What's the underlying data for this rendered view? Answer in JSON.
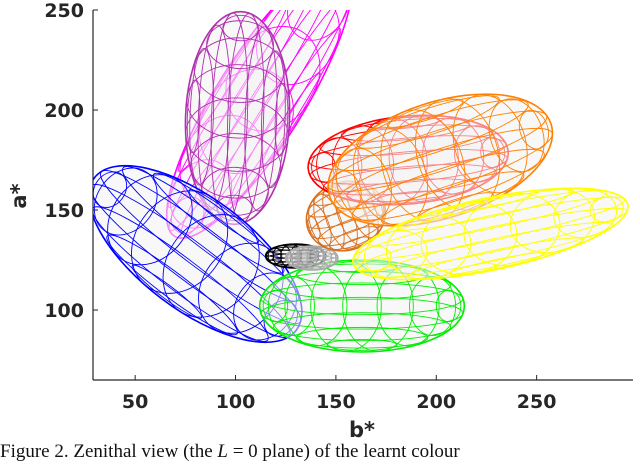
{
  "chart_data": {
    "type": "scatter",
    "subtype": "3d-ellipsoid-wireframe-top-view",
    "xlabel": "b*",
    "ylabel": "a*",
    "xlim": [
      29,
      298
    ],
    "ylim": [
      65,
      250
    ],
    "xticks": [
      50,
      100,
      150,
      200,
      250
    ],
    "yticks": [
      100,
      150,
      200,
      250
    ],
    "grid": false,
    "ellipsoids": [
      {
        "name": "magenta",
        "color": "#ff00ff",
        "center_b": 112,
        "center_a": 205,
        "semi_major": 80,
        "semi_minor": 22,
        "angle_deg": 58
      },
      {
        "name": "purple",
        "color": "#b030b0",
        "center_b": 101,
        "center_a": 196,
        "semi_major": 53,
        "semi_minor": 26,
        "angle_deg": 88
      },
      {
        "name": "blue",
        "color": "#0000ff",
        "center_b": 80,
        "center_a": 128,
        "semi_major": 63,
        "semi_minor": 28,
        "angle_deg": -37
      },
      {
        "name": "green",
        "color": "#00ee00",
        "center_b": 163,
        "center_a": 102,
        "semi_major": 51,
        "semi_minor": 23,
        "angle_deg": 0
      },
      {
        "name": "black",
        "color": "#000000",
        "center_b": 130,
        "center_a": 127,
        "semi_major": 15,
        "semi_minor": 6,
        "angle_deg": 0
      },
      {
        "name": "grey",
        "color": "#aaaaaa",
        "center_b": 138,
        "center_a": 126,
        "semi_major": 13,
        "semi_minor": 6,
        "angle_deg": 0
      },
      {
        "name": "dark-orange",
        "color": "#d87020",
        "center_b": 155,
        "center_a": 147,
        "semi_major": 20,
        "semi_minor": 17,
        "angle_deg": 20
      },
      {
        "name": "red",
        "color": "#ff0000",
        "center_b": 186,
        "center_a": 175,
        "semi_major": 50,
        "semi_minor": 22,
        "angle_deg": 5
      },
      {
        "name": "orange",
        "color": "#ff8000",
        "center_b": 202,
        "center_a": 175,
        "semi_major": 58,
        "semi_minor": 29,
        "angle_deg": 18
      },
      {
        "name": "yellow",
        "color": "#ffff00",
        "center_b": 227,
        "center_a": 138,
        "semi_major": 70,
        "semi_minor": 18,
        "angle_deg": 12
      }
    ]
  },
  "caption": {
    "prefix": "Figure 2. Zenithal view (the ",
    "var": "L",
    "middle": " = 0 plane) of the learnt colour"
  }
}
